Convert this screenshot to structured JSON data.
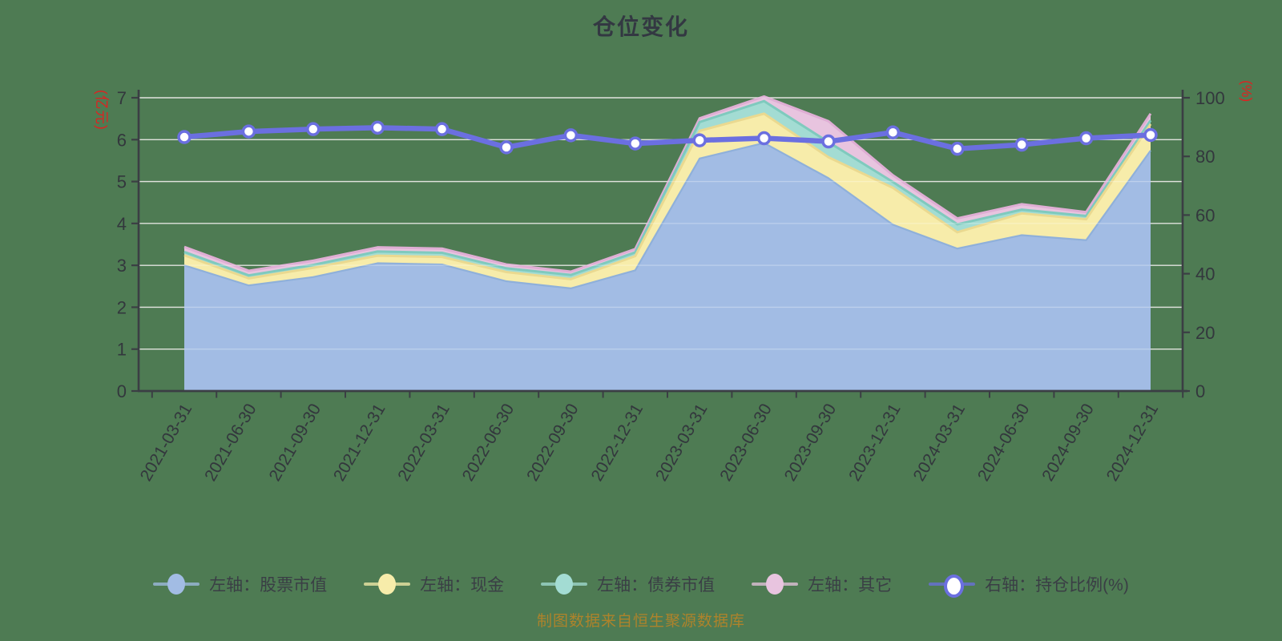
{
  "title": "仓位变化",
  "source_note": "制图数据来自恒生聚源数据库",
  "left_axis": {
    "name": "(亿元)",
    "ticks": [
      0,
      1,
      2,
      3,
      4,
      5,
      6,
      7
    ]
  },
  "right_axis": {
    "name": "(%)",
    "ticks": [
      0,
      20,
      40,
      60,
      80,
      100
    ]
  },
  "legend": {
    "items": [
      {
        "label": "左轴：股票市值",
        "color_key": "stock",
        "marker": "filled-oval"
      },
      {
        "label": "左轴：现金",
        "color_key": "cash",
        "marker": "filled-oval"
      },
      {
        "label": "左轴：债券市值",
        "color_key": "bond",
        "marker": "filled-oval"
      },
      {
        "label": "左轴：其它",
        "color_key": "other",
        "marker": "filled-oval"
      },
      {
        "label": "右轴：持仓比例(%)",
        "color_key": "ratio_line",
        "marker": "ring-oval"
      }
    ]
  },
  "colors": {
    "background": "#4e7b53",
    "stock": "#a2bce4",
    "cash": "#f7ecaa",
    "bond": "#a3dcd3",
    "other": "#e8c4df",
    "stock_edge": "#8fb0da",
    "cash_edge": "#ead990",
    "bond_edge": "#7fcabe",
    "other_edge": "#dfaed4",
    "ratio_line": "#6b6fe0",
    "dot_fill": "#ffffff",
    "axis": "#3b3e44",
    "tick_text": "#33373d",
    "grid": "#d4d7d0",
    "grid_overlay": "rgba(255,255,255,0.30)",
    "axis_name_red": "#e02020",
    "title_text": "#333842",
    "legend_text": "#3a3e45",
    "source_text": "#ae832b"
  },
  "chart_data": {
    "type": "combo: stacked-area (left axis) + line (right axis)",
    "title": "仓位变化",
    "categories": [
      "2021-03-31",
      "2021-06-30",
      "2021-09-30",
      "2021-12-31",
      "2022-03-31",
      "2022-06-30",
      "2022-09-30",
      "2022-12-31",
      "2023-03-31",
      "2023-06-30",
      "2023-09-30",
      "2023-12-31",
      "2024-03-31",
      "2024-06-30",
      "2024-09-30",
      "2024-12-31"
    ],
    "series": [
      {
        "name": "左轴：股票市值",
        "type": "area-stacked",
        "axis": "left",
        "values": [
          3.0,
          2.52,
          2.72,
          3.05,
          3.02,
          2.62,
          2.45,
          2.88,
          5.55,
          5.92,
          5.08,
          3.97,
          3.4,
          3.72,
          3.6,
          5.74
        ]
      },
      {
        "name": "左轴：现金",
        "type": "area-stacked",
        "axis": "left",
        "values": [
          0.24,
          0.17,
          0.22,
          0.18,
          0.18,
          0.22,
          0.22,
          0.34,
          0.66,
          0.7,
          0.5,
          0.88,
          0.39,
          0.52,
          0.5,
          0.63
        ]
      },
      {
        "name": "左轴：债券市值",
        "type": "area-stacked",
        "axis": "left",
        "values": [
          0.08,
          0.07,
          0.07,
          0.1,
          0.1,
          0.09,
          0.1,
          0.09,
          0.21,
          0.3,
          0.36,
          0.14,
          0.19,
          0.09,
          0.08,
          0.09
        ]
      },
      {
        "name": "左轴：其它",
        "type": "area-stacked",
        "axis": "left",
        "values": [
          0.12,
          0.11,
          0.1,
          0.1,
          0.1,
          0.09,
          0.08,
          0.08,
          0.09,
          0.11,
          0.5,
          0.16,
          0.14,
          0.13,
          0.09,
          0.16
        ]
      },
      {
        "name": "右轴：持仓比例(%)",
        "type": "line",
        "axis": "right",
        "values": [
          86.6,
          88.5,
          89.3,
          89.8,
          89.3,
          83.1,
          87.2,
          84.4,
          85.5,
          86.2,
          85.1,
          88.2,
          82.6,
          84.0,
          86.2,
          87.3
        ]
      }
    ],
    "left_ylim": [
      0,
      7
    ],
    "right_ylim": [
      0,
      100
    ],
    "grid": true,
    "legend_position": "bottom",
    "x_label_rotation_deg": 60
  }
}
